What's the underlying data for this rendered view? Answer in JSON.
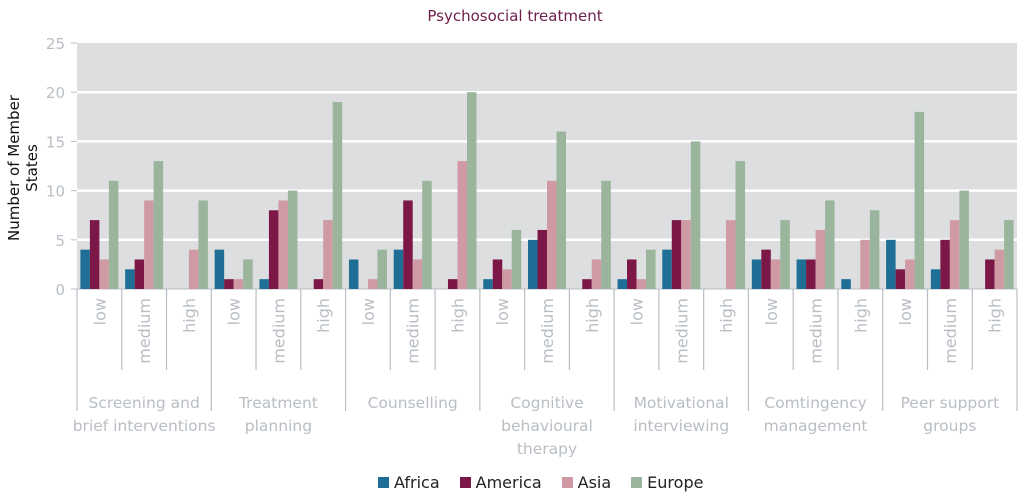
{
  "chart_data": {
    "type": "bar",
    "title": "Psychosocial treatment",
    "xlabel": "",
    "ylabel": "Number of Member States",
    "ylim": [
      0,
      25
    ],
    "yticks": [
      0,
      5,
      10,
      15,
      20,
      25
    ],
    "grid": true,
    "legend_position": "bottom",
    "groups": [
      {
        "label": "Screening and brief interventions",
        "lines": [
          "Screening and",
          "brief interventions"
        ]
      },
      {
        "label": "Treatment planning",
        "lines": [
          "Treatment",
          "planning"
        ]
      },
      {
        "label": "Counselling",
        "lines": [
          "Counselling"
        ]
      },
      {
        "label": "Cognitive behavioural therapy",
        "lines": [
          "Cognitive",
          "behavioural",
          "therapy"
        ]
      },
      {
        "label": "Motivational interviewing",
        "lines": [
          "Motivational",
          "interviewing"
        ]
      },
      {
        "label": "Comtingency management",
        "lines": [
          "Comtingency",
          "management"
        ]
      },
      {
        "label": "Peer support groups",
        "lines": [
          "Peer support",
          "groups"
        ]
      }
    ],
    "subcategories": [
      "low",
      "medium",
      "high"
    ],
    "series": [
      {
        "name": "Africa",
        "color": "#1f6e96",
        "values": [
          4,
          2,
          0,
          4,
          1,
          0,
          3,
          4,
          0,
          1,
          5,
          0,
          1,
          4,
          0,
          3,
          3,
          1,
          5,
          2,
          0
        ]
      },
      {
        "name": "America",
        "color": "#7b1848",
        "values": [
          7,
          3,
          0,
          1,
          8,
          1,
          0,
          9,
          1,
          3,
          6,
          1,
          3,
          7,
          0,
          4,
          3,
          0,
          2,
          5,
          3
        ]
      },
      {
        "name": "Asia",
        "color": "#d09aa4",
        "values": [
          3,
          9,
          4,
          1,
          9,
          7,
          1,
          3,
          13,
          2,
          11,
          3,
          1,
          7,
          7,
          3,
          6,
          5,
          3,
          7,
          4
        ]
      },
      {
        "name": "Europe",
        "color": "#9bb49c",
        "values": [
          11,
          13,
          9,
          3,
          10,
          19,
          4,
          11,
          20,
          6,
          16,
          11,
          4,
          15,
          13,
          7,
          9,
          8,
          18,
          10,
          7
        ]
      }
    ]
  },
  "colors": {
    "plot_background": "#dcdee0",
    "gridline": "#ffffff",
    "axis_text": "#b8bec4",
    "title": "#6d1f4a"
  }
}
